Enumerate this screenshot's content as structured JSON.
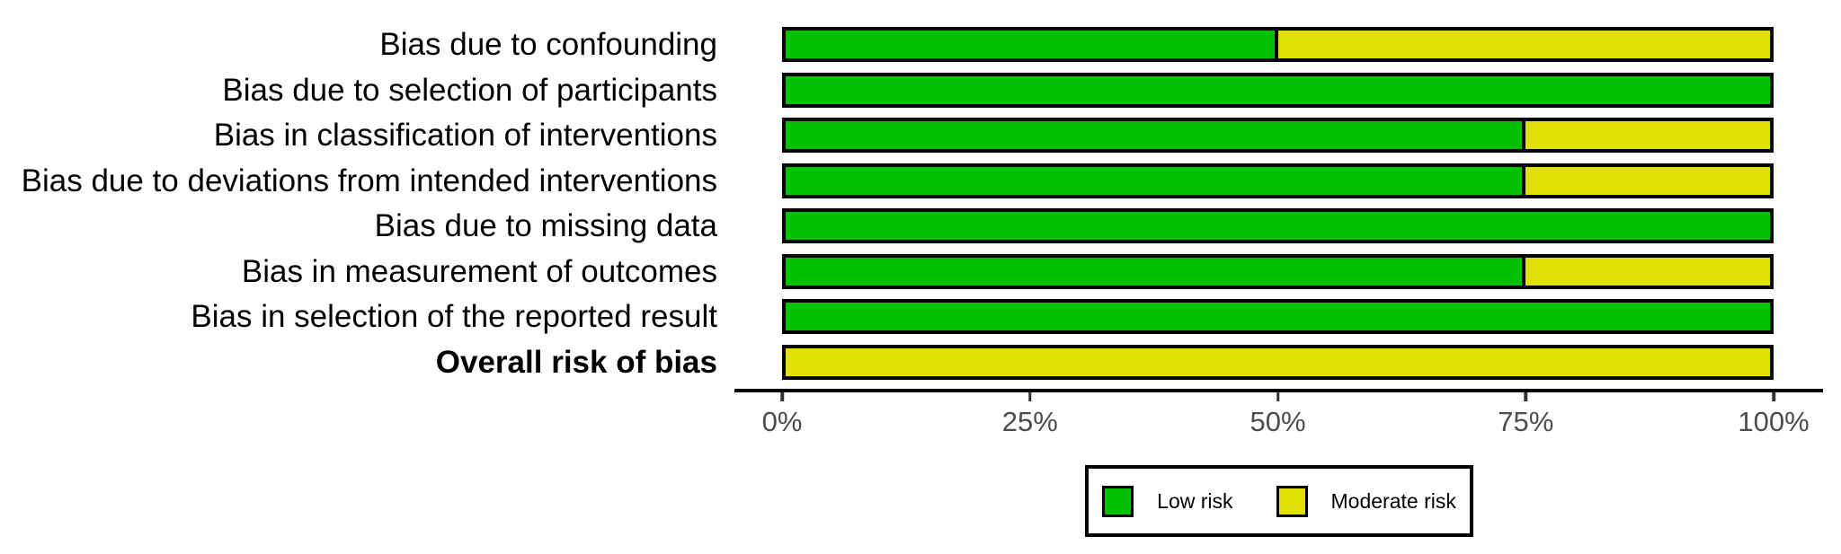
{
  "chart_data": {
    "type": "bar",
    "orientation": "horizontal",
    "stacked": true,
    "title": "",
    "xlabel": "",
    "ylabel": "",
    "xlim": [
      0,
      100
    ],
    "grid": false,
    "legend_position": "bottom",
    "categories": [
      "Bias due to confounding",
      "Bias due to selection of participants",
      "Bias in classification of interventions",
      "Bias due to deviations from intended interventions",
      "Bias due to missing data",
      "Bias in measurement of outcomes",
      "Bias in selection of the reported result",
      "Overall risk of bias"
    ],
    "series": [
      {
        "name": "Low risk",
        "color": "#02C100",
        "values": [
          50,
          100,
          75,
          75,
          100,
          75,
          100,
          0
        ]
      },
      {
        "name": "Moderate risk",
        "color": "#E2DF07",
        "values": [
          50,
          0,
          25,
          25,
          0,
          25,
          0,
          100
        ]
      }
    ],
    "x_ticks": [
      "0%",
      "25%",
      "50%",
      "75%",
      "100%"
    ],
    "x_tick_positions": [
      0,
      25,
      50,
      75,
      100
    ],
    "bold_category": "Overall risk of bias"
  },
  "legend": {
    "items": [
      {
        "label": "Low risk",
        "color": "#02C100"
      },
      {
        "label": "Moderate risk",
        "color": "#E2DF07"
      }
    ]
  },
  "colors": {
    "segment_border": "#000000",
    "axis_line": "#000000",
    "tick_mark": "#333333",
    "tick_label": "#4d4d4d",
    "background": "#ffffff"
  }
}
